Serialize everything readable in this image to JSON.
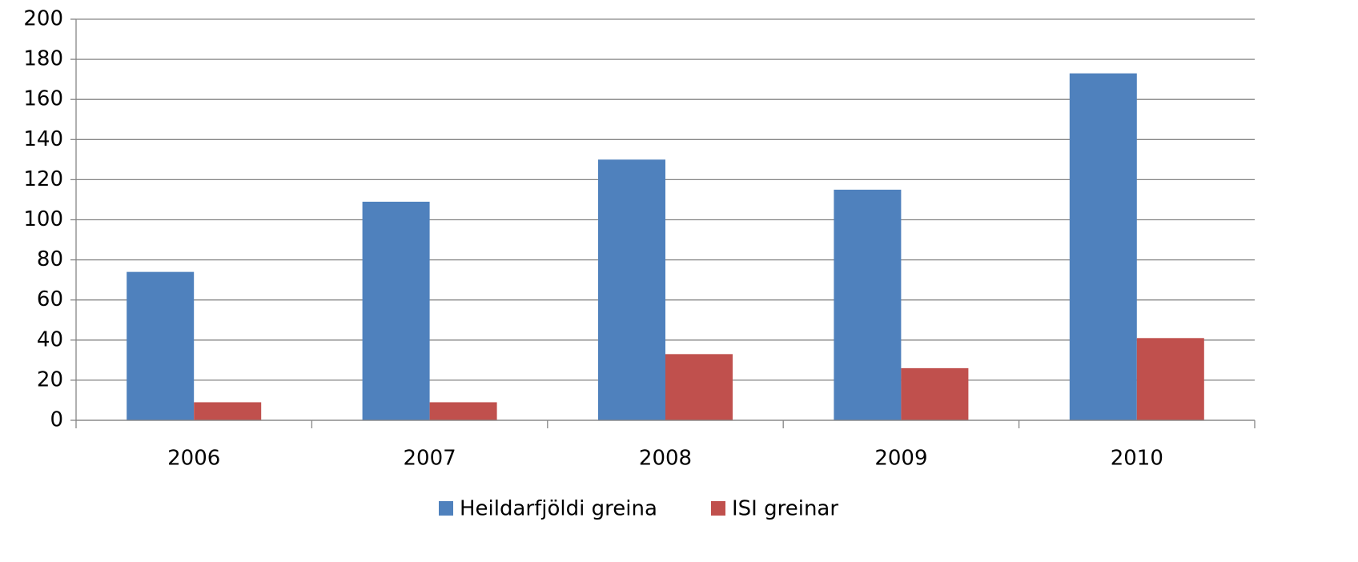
{
  "chart_data": {
    "type": "bar",
    "categories": [
      "2006",
      "2007",
      "2008",
      "2009",
      "2010"
    ],
    "series": [
      {
        "name": "Heildarfjöldi greina",
        "color": "#4f81bd",
        "values": [
          74,
          109,
          130,
          115,
          173
        ]
      },
      {
        "name": "ISI greinar",
        "color": "#c0504d",
        "values": [
          9,
          9,
          33,
          26,
          41
        ]
      }
    ],
    "ylim": [
      0,
      200
    ],
    "yticks": [
      0,
      20,
      40,
      60,
      80,
      100,
      120,
      140,
      160,
      180,
      200
    ],
    "grid": true,
    "legend": "bottom"
  }
}
